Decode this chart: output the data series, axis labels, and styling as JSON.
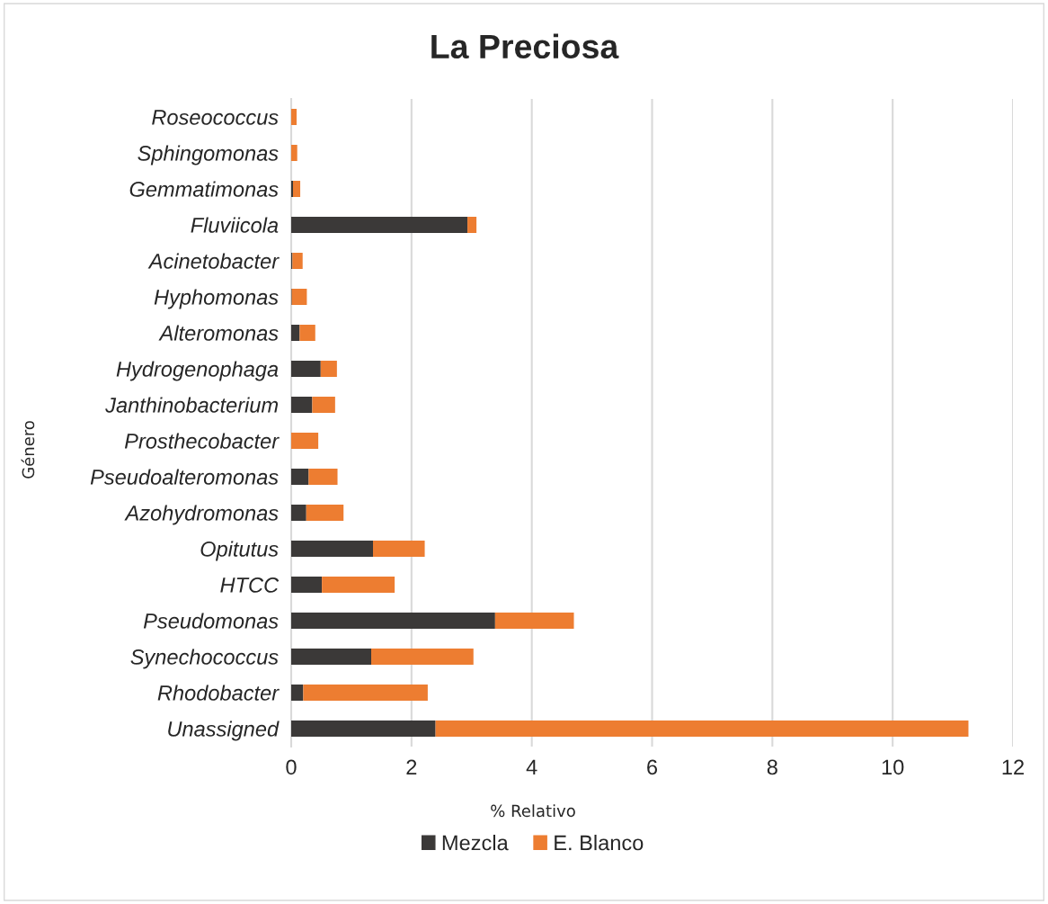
{
  "chart_data": {
    "type": "bar",
    "orientation": "horizontal",
    "stacked": true,
    "title": "La Preciosa",
    "xlabel": "% Relativo",
    "ylabel": "Género",
    "categories": [
      "Roseococcus",
      "Sphingomonas",
      "Gemmatimonas",
      "Fluviicola",
      "Acinetobacter",
      "Hyphomonas",
      "Alteromonas",
      "Hydrogenophaga",
      "Janthinobacterium",
      "Prosthecobacter",
      "Pseudoalteromonas",
      "Azohydromonas",
      "Opitutus",
      "HTCC",
      "Pseudomonas",
      "Synechococcus",
      "Rhodobacter",
      "Unassigned"
    ],
    "series": [
      {
        "name": "Mezcla",
        "color": "#3b3938",
        "values": [
          0,
          0,
          0.03,
          2.93,
          0.02,
          0.01,
          0.14,
          0.49,
          0.35,
          0,
          0.29,
          0.25,
          1.36,
          0.51,
          3.39,
          1.33,
          0.2,
          2.4
        ]
      },
      {
        "name": "E. Blanco",
        "color": "#ed7d31",
        "values": [
          0.09,
          0.1,
          0.12,
          0.15,
          0.17,
          0.25,
          0.26,
          0.27,
          0.38,
          0.45,
          0.48,
          0.62,
          0.86,
          1.21,
          1.31,
          1.7,
          2.07,
          8.86
        ]
      }
    ],
    "xlim": [
      0,
      12
    ],
    "xticks": [
      0,
      2,
      4,
      6,
      8,
      10,
      12
    ],
    "grid": "x",
    "legend": "bottom"
  }
}
